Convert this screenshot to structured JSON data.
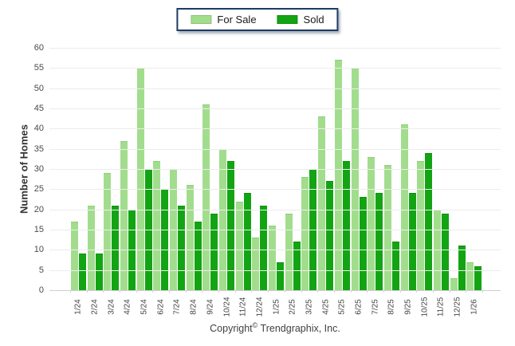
{
  "legend": {
    "position": "top-center"
  },
  "chart_data": {
    "type": "bar",
    "title": "",
    "ylabel": "Number of Homes",
    "xlabel": "",
    "ylim": [
      0,
      60
    ],
    "ytick_step": 5,
    "grid": true,
    "legend_position": "top-center",
    "categories": [
      "1/24",
      "2/24",
      "3/24",
      "4/24",
      "5/24",
      "6/24",
      "7/24",
      "8/24",
      "9/24",
      "10/24",
      "11/24",
      "12/24",
      "1/25",
      "2/25",
      "3/25",
      "4/25",
      "5/25",
      "6/25",
      "7/25",
      "8/25",
      "9/25",
      "10/25",
      "11/25",
      "12/25",
      "1/26"
    ],
    "series": [
      {
        "name": "For Sale",
        "color": "#a2dd8d",
        "border_color": "#8fcd79",
        "values": [
          17,
          21,
          29,
          37,
          55,
          32,
          30,
          26,
          46,
          35,
          22,
          13,
          16,
          19,
          28,
          43,
          57,
          55,
          33,
          31,
          41,
          32,
          20,
          3,
          7
        ]
      },
      {
        "name": "Sold",
        "color": "#13a413",
        "border_color": "#0e8f0e",
        "values": [
          9,
          9,
          21,
          20,
          30,
          25,
          21,
          17,
          19,
          32,
          24,
          21,
          7,
          12,
          30,
          27,
          32,
          23,
          24,
          12,
          24,
          34,
          19,
          11,
          6
        ]
      }
    ],
    "gridline_color": "#ececec",
    "axis_line_color": "#cfcfcf"
  },
  "footer": {
    "prefix": "Copyright",
    "symbol": "©",
    "suffix": "Trendgraphix, Inc."
  }
}
